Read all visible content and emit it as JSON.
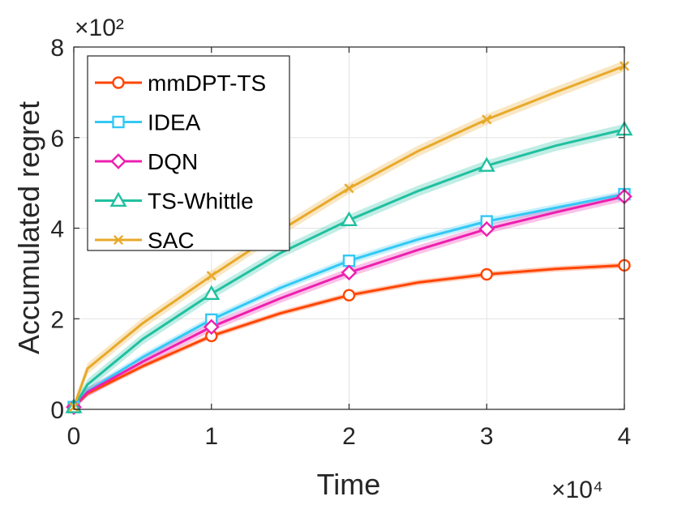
{
  "chart_data": {
    "type": "line",
    "xlabel": "Time",
    "ylabel": "Accumulated regret",
    "x_multiplier_label": "×10⁴",
    "y_multiplier_label": "×10²",
    "xlim": [
      0,
      4
    ],
    "ylim": [
      0,
      8
    ],
    "xticks": [
      0,
      1,
      2,
      3,
      4
    ],
    "yticks": [
      0,
      2,
      4,
      6,
      8
    ],
    "grid": true,
    "legend_position": "top-left",
    "series": [
      {
        "name": "mmDPT-TS",
        "color": "#ff4500",
        "marker": "circle",
        "x": [
          0,
          0.1,
          0.5,
          1,
          1.5,
          2,
          2.5,
          3,
          3.5,
          4
        ],
        "values": [
          0.05,
          0.35,
          0.95,
          1.62,
          2.12,
          2.52,
          2.8,
          2.98,
          3.1,
          3.18
        ],
        "band": 0.06,
        "marker_x": [
          0,
          1,
          2,
          3,
          4
        ]
      },
      {
        "name": "IDEA",
        "color": "#33c8f5",
        "marker": "square",
        "x": [
          0,
          0.1,
          0.5,
          1,
          1.5,
          2,
          2.5,
          3,
          3.5,
          4
        ],
        "values": [
          0.05,
          0.4,
          1.15,
          1.98,
          2.68,
          3.28,
          3.75,
          4.15,
          4.45,
          4.75
        ],
        "band": 0.08,
        "marker_x": [
          0,
          1,
          2,
          3,
          4
        ]
      },
      {
        "name": "DQN",
        "color": "#ee1fae",
        "marker": "diamond",
        "x": [
          0,
          0.1,
          0.5,
          1,
          1.5,
          2,
          2.5,
          3,
          3.5,
          4
        ],
        "values": [
          0.05,
          0.38,
          1.05,
          1.82,
          2.45,
          3.02,
          3.52,
          3.98,
          4.35,
          4.7
        ],
        "band": 0.1,
        "marker_x": [
          0,
          1,
          2,
          3,
          4
        ]
      },
      {
        "name": "TS-Whittle",
        "color": "#20c0a0",
        "marker": "triangle",
        "x": [
          0,
          0.1,
          0.5,
          1,
          1.5,
          2,
          2.5,
          3,
          3.5,
          4
        ],
        "values": [
          0.05,
          0.55,
          1.55,
          2.55,
          3.45,
          4.18,
          4.82,
          5.38,
          5.82,
          6.18
        ],
        "band": 0.12,
        "marker_x": [
          0,
          1,
          2,
          3,
          4
        ]
      },
      {
        "name": "SAC",
        "color": "#e8a92a",
        "marker": "x",
        "x": [
          0,
          0.1,
          0.5,
          1,
          1.5,
          2,
          2.5,
          3,
          3.5,
          4
        ],
        "values": [
          0.05,
          0.9,
          1.9,
          2.95,
          3.95,
          4.88,
          5.7,
          6.4,
          7.0,
          7.58
        ],
        "band": 0.12,
        "marker_x": [
          0,
          1,
          2,
          3,
          4
        ]
      }
    ]
  }
}
